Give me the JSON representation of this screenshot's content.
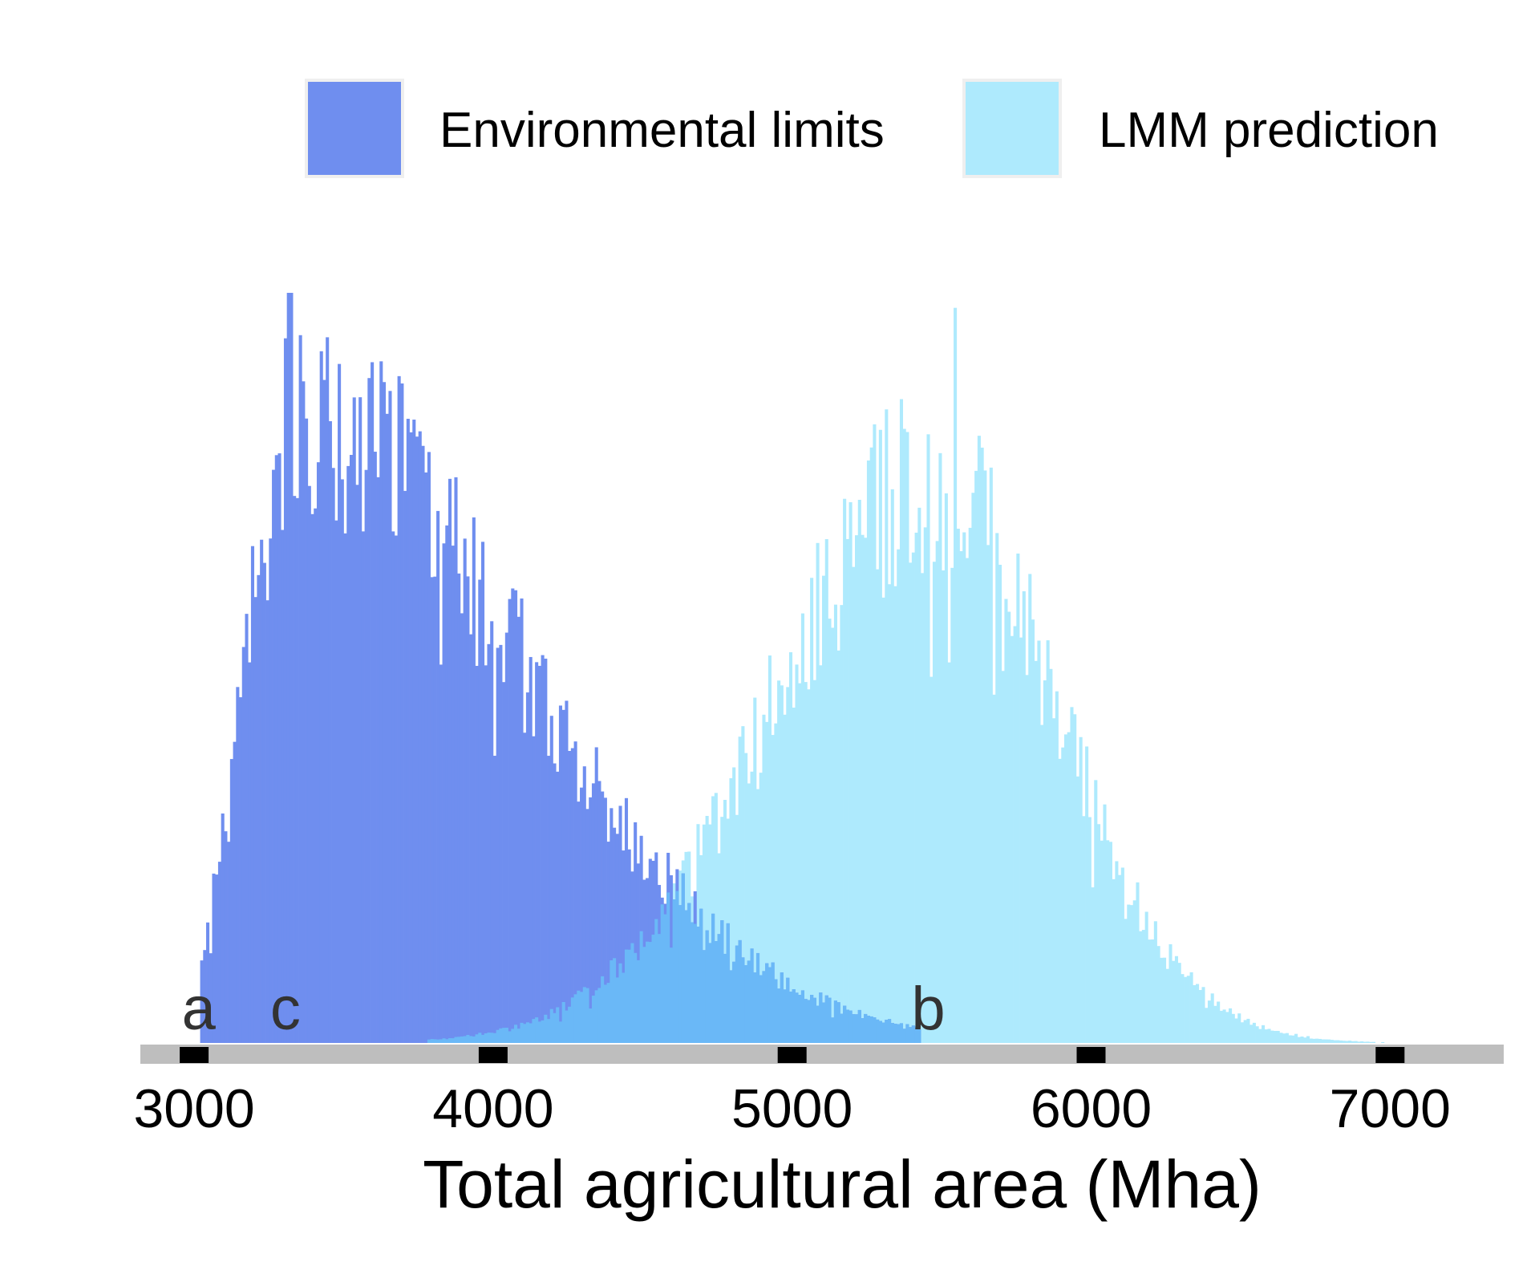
{
  "chart_data": {
    "type": "histogram",
    "xlabel": "Total agricultural area (Mha)",
    "ylabel": "",
    "xlim": [
      2820,
      7380
    ],
    "xticks": [
      3000,
      4000,
      5000,
      6000,
      7000
    ],
    "tick_labels": [
      "3000",
      "4000",
      "5000",
      "6000",
      "7000"
    ],
    "bin_width": 10,
    "grid": false,
    "legend_position": "top-right",
    "series": [
      {
        "name": "Environmental limits",
        "color": "#6f8eef",
        "range": [
          3020,
          5420
        ],
        "shape": {
          "mode": 3330,
          "left_sigma": 160,
          "right_sigma": 760,
          "peak": 1.0
        },
        "fine_shape": {
          "peak_density": 0.84,
          "outliers": [
            [
              3310,
              1.0
            ],
            [
              3320,
              1.0
            ]
          ]
        }
      },
      {
        "name": "LMM prediction",
        "color": "#aeeafd",
        "range": [
          3780,
          7000
        ],
        "shape": {
          "mode": 5450,
          "left_sigma": 520,
          "right_sigma": 420,
          "peak": 0.89
        },
        "fine_shape": {
          "peak_density": 0.84,
          "outliers": [
            [
              5540,
              0.98
            ]
          ]
        }
      }
    ],
    "overlap_color": "#6ab8f7",
    "annotations": [
      {
        "label": "a",
        "x": 3010
      },
      {
        "label": "c",
        "x": 3300
      },
      {
        "label": "b",
        "x": 5450
      }
    ]
  }
}
